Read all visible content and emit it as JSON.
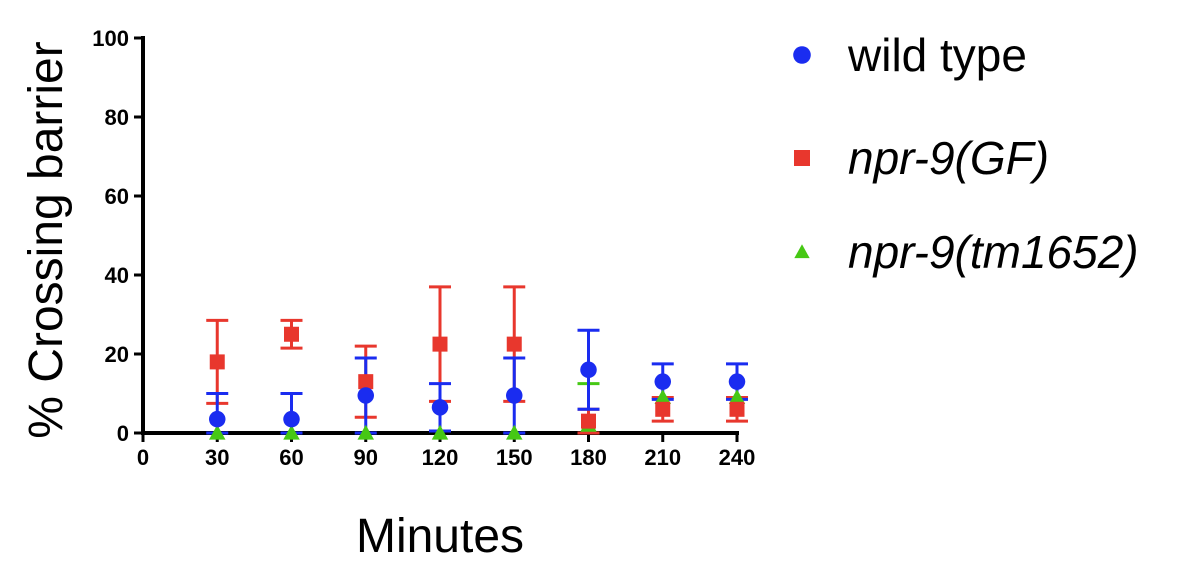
{
  "chart_data": {
    "type": "scatter",
    "xlabel": "Minutes",
    "ylabel": "% Crossing barrier",
    "xlim": [
      0,
      240
    ],
    "ylim": [
      0,
      100
    ],
    "xticks": [
      "0",
      "30",
      "60",
      "90",
      "120",
      "150",
      "180",
      "210",
      "240"
    ],
    "yticks": [
      "0",
      "20",
      "40",
      "60",
      "80",
      "100"
    ],
    "grid": false,
    "legend_position": "right",
    "series": [
      {
        "name": "wild type",
        "italic": false,
        "marker": "circle",
        "color": "#1a2cf0",
        "x": [
          30,
          60,
          90,
          120,
          150,
          180,
          210,
          240
        ],
        "y": [
          3.5,
          3.5,
          9.5,
          6.5,
          9.5,
          16,
          13,
          13
        ],
        "err": [
          6.5,
          6.5,
          9.5,
          6,
          9.5,
          10,
          4.5,
          4.5
        ]
      },
      {
        "name": "npr-9(GF)",
        "italic": true,
        "marker": "square",
        "color": "#e8372d",
        "x": [
          30,
          60,
          90,
          120,
          150,
          180,
          210,
          240
        ],
        "y": [
          18,
          25,
          13,
          22.5,
          22.5,
          3,
          6,
          6
        ],
        "err": [
          10.5,
          3.5,
          9,
          14.5,
          14.5,
          3,
          3,
          3
        ]
      },
      {
        "name": "npr-9(tm1652)",
        "italic": true,
        "marker": "triangle",
        "color": "#46c814",
        "x": [
          30,
          60,
          90,
          120,
          150,
          180,
          210,
          240
        ],
        "y": [
          0,
          0,
          0,
          0,
          0,
          2,
          9,
          9
        ],
        "err": [
          0,
          0,
          0,
          0,
          0,
          10.5,
          0,
          0
        ]
      }
    ]
  }
}
